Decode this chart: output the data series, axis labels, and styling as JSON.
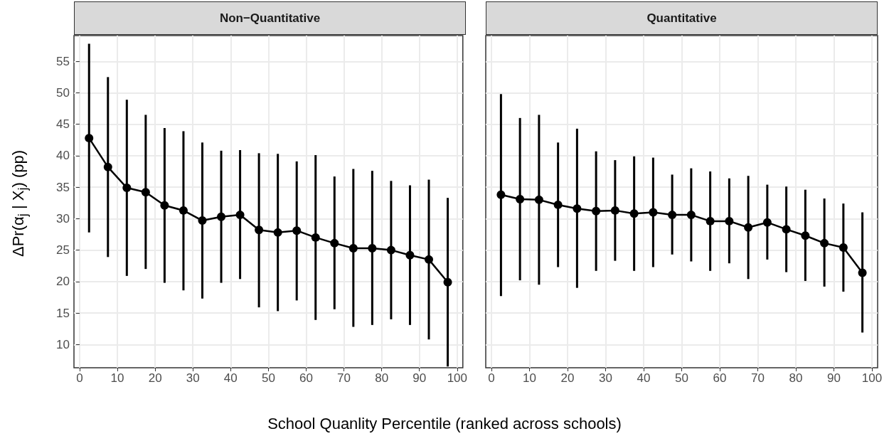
{
  "chart_data": [
    {
      "type": "line",
      "title": "Non−Quantitative",
      "xlabel": "School Quanlity Percentile (ranked across schools)",
      "ylabel": "ΔPr(α$_{j}$ | X$_{j}$) (pp)",
      "x": [
        2.5,
        7.5,
        12.5,
        17.5,
        22.5,
        27.5,
        32.5,
        37.5,
        42.5,
        47.5,
        52.5,
        57.5,
        62.5,
        67.5,
        72.5,
        77.5,
        82.5,
        87.5,
        92.5,
        97.5
      ],
      "series": [
        {
          "color": "#000000",
          "values": [
            42.8,
            38.2,
            34.9,
            34.2,
            32.1,
            31.3,
            29.7,
            30.3,
            30.6,
            28.2,
            27.8,
            28.1,
            27.0,
            26.1,
            25.3,
            25.3,
            25.0,
            24.2,
            23.5,
            19.9
          ],
          "errors": [
            [
              27.8,
              57.8
            ],
            [
              23.9,
              52.5
            ],
            [
              20.9,
              48.9
            ],
            [
              22.0,
              46.5
            ],
            [
              19.8,
              44.4
            ],
            [
              18.6,
              43.9
            ],
            [
              17.3,
              42.1
            ],
            [
              19.8,
              40.8
            ],
            [
              20.4,
              40.9
            ],
            [
              15.9,
              40.4
            ],
            [
              15.3,
              40.3
            ],
            [
              17.0,
              39.1
            ],
            [
              13.9,
              40.1
            ],
            [
              15.6,
              36.7
            ],
            [
              12.8,
              37.9
            ],
            [
              13.1,
              37.6
            ],
            [
              14.0,
              36.0
            ],
            [
              13.1,
              35.3
            ],
            [
              10.8,
              36.2
            ],
            [
              6.5,
              33.3
            ]
          ]
        }
      ],
      "xlim": [
        -1.5,
        101.5
      ],
      "xticks": [
        0,
        10,
        20,
        30,
        40,
        50,
        60,
        70,
        80,
        90,
        100
      ],
      "ylim": [
        6.3,
        59.1
      ],
      "yticks": [
        10,
        15,
        20,
        25,
        30,
        35,
        40,
        45,
        50,
        55
      ],
      "grid": true,
      "marker": "circle"
    },
    {
      "type": "line",
      "title": "Quantitative",
      "x": [
        2.5,
        7.5,
        12.5,
        17.5,
        22.5,
        27.5,
        32.5,
        37.5,
        42.5,
        47.5,
        52.5,
        57.5,
        62.5,
        67.5,
        72.5,
        77.5,
        82.5,
        87.5,
        92.5,
        97.5
      ],
      "series": [
        {
          "color": "#000000",
          "values": [
            33.8,
            33.1,
            33.0,
            32.2,
            31.6,
            31.2,
            31.3,
            30.8,
            31.0,
            30.6,
            30.6,
            29.6,
            29.6,
            28.6,
            29.4,
            28.3,
            27.3,
            26.1,
            25.4,
            21.4
          ],
          "errors": [
            [
              17.7,
              49.8
            ],
            [
              20.2,
              46.0
            ],
            [
              19.5,
              46.5
            ],
            [
              22.3,
              42.1
            ],
            [
              19.0,
              44.3
            ],
            [
              21.7,
              40.7
            ],
            [
              23.3,
              39.3
            ],
            [
              21.7,
              39.9
            ],
            [
              22.3,
              39.7
            ],
            [
              24.3,
              37.0
            ],
            [
              23.2,
              38.0
            ],
            [
              21.7,
              37.5
            ],
            [
              22.9,
              36.4
            ],
            [
              20.4,
              36.8
            ],
            [
              23.5,
              35.4
            ],
            [
              21.5,
              35.1
            ],
            [
              20.1,
              34.6
            ],
            [
              19.2,
              33.2
            ],
            [
              18.4,
              32.4
            ],
            [
              11.9,
              31.0
            ]
          ]
        }
      ],
      "xlim": [
        -1.5,
        101.5
      ],
      "xticks": [
        0,
        10,
        20,
        30,
        40,
        50,
        60,
        70,
        80,
        90,
        100
      ],
      "ylim": [
        6.3,
        59.1
      ],
      "yticks": [
        10,
        15,
        20,
        25,
        30,
        35,
        40,
        45,
        50,
        55
      ],
      "grid": true,
      "marker": "circle",
      "tick_labels": "x"
    }
  ]
}
